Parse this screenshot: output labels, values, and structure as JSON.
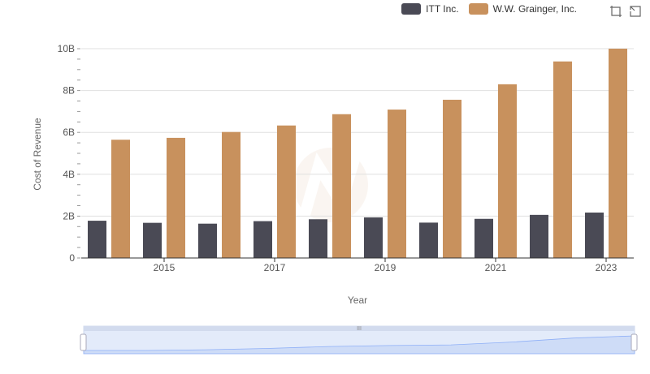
{
  "chart_data": {
    "type": "bar",
    "title": "",
    "xlabel": "Year",
    "ylabel": "Cost of Revenue",
    "categories": [
      "2014",
      "2015",
      "2016",
      "2017",
      "2018",
      "2019",
      "2020",
      "2021",
      "2022",
      "2023"
    ],
    "x_tick_labels": [
      "2015",
      "2017",
      "2019",
      "2021",
      "2023"
    ],
    "y_tick_labels": [
      "0",
      "2B",
      "4B",
      "6B",
      "8B",
      "10B"
    ],
    "ylim": [
      0,
      10000000000
    ],
    "grid": true,
    "legend_position": "top-right",
    "series": [
      {
        "name": "ITT Inc.",
        "color": "#4a4a55",
        "values": [
          1780000000,
          1680000000,
          1640000000,
          1760000000,
          1850000000,
          1940000000,
          1690000000,
          1870000000,
          2060000000,
          2170000000
        ]
      },
      {
        "name": "W.W. Grainger, Inc.",
        "color": "#c8915d",
        "values": [
          5650000000,
          5740000000,
          6020000000,
          6330000000,
          6870000000,
          7090000000,
          7560000000,
          8300000000,
          9390000000,
          10000000000
        ]
      }
    ]
  },
  "toolbox": {
    "zoom_icon": "zoom-icon",
    "reset_icon": "restore-icon"
  },
  "data_zoom": {
    "start": 0,
    "end": 100
  }
}
